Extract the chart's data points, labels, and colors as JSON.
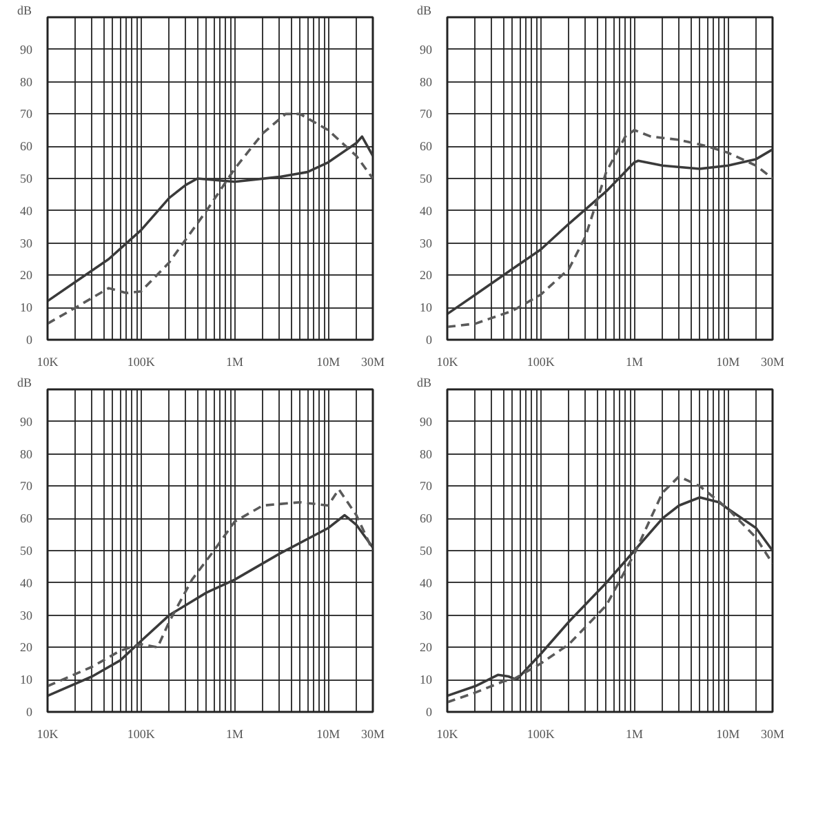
{
  "chart_data": [
    {
      "type": "line",
      "log": "x",
      "grid": true,
      "ylabel": "dB",
      "xlim": [
        10000,
        30000000
      ],
      "ylim": [
        0,
        100
      ],
      "xticks": [
        {
          "value": 10000,
          "label": "10K"
        },
        {
          "value": 20000,
          "label": null
        },
        {
          "value": 30000,
          "label": null
        },
        {
          "value": 40000,
          "label": null
        },
        {
          "value": 50000,
          "label": null
        },
        {
          "value": 60000,
          "label": null
        },
        {
          "value": 70000,
          "label": null
        },
        {
          "value": 80000,
          "label": null
        },
        {
          "value": 90000,
          "label": null
        },
        {
          "value": 100000,
          "label": "100K"
        },
        {
          "value": 200000,
          "label": null
        },
        {
          "value": 300000,
          "label": null
        },
        {
          "value": 400000,
          "label": null
        },
        {
          "value": 500000,
          "label": null
        },
        {
          "value": 600000,
          "label": null
        },
        {
          "value": 700000,
          "label": null
        },
        {
          "value": 800000,
          "label": null
        },
        {
          "value": 900000,
          "label": null
        },
        {
          "value": 1000000,
          "label": "1M"
        },
        {
          "value": 2000000,
          "label": null
        },
        {
          "value": 3000000,
          "label": null
        },
        {
          "value": 4000000,
          "label": null
        },
        {
          "value": 5000000,
          "label": null
        },
        {
          "value": 6000000,
          "label": null
        },
        {
          "value": 7000000,
          "label": null
        },
        {
          "value": 8000000,
          "label": null
        },
        {
          "value": 9000000,
          "label": null
        },
        {
          "value": 10000000,
          "label": "10M"
        },
        {
          "value": 20000000,
          "label": null
        },
        {
          "value": 30000000,
          "label": "30M"
        }
      ],
      "yticks": [
        0,
        10,
        20,
        30,
        40,
        50,
        60,
        70,
        80,
        90
      ],
      "series": [
        {
          "color": "#3a3a3a",
          "line_style": "solid",
          "x": [
            10000,
            20000,
            45000,
            100000,
            200000,
            300000,
            400000,
            1000000,
            3000000,
            6000000,
            10000000,
            20000000,
            23000000,
            30000000
          ],
          "values": [
            12,
            18,
            25,
            34,
            44,
            48,
            50,
            49,
            50.5,
            52,
            55,
            61,
            63,
            57
          ]
        },
        {
          "color": "#5a5a5a",
          "line_style": "dashed",
          "x": [
            10000,
            20000,
            45000,
            70000,
            100000,
            200000,
            500000,
            1000000,
            2000000,
            3500000,
            5000000,
            10000000,
            20000000,
            30000000
          ],
          "values": [
            5,
            10,
            16,
            14.5,
            15,
            24,
            40,
            53,
            64,
            70,
            70,
            65,
            57,
            50
          ]
        }
      ]
    },
    {
      "type": "line",
      "log": "x",
      "grid": true,
      "ylabel": "dB",
      "xlim": [
        10000,
        30000000
      ],
      "ylim": [
        0,
        100
      ],
      "xticks": [
        {
          "value": 10000,
          "label": "10K"
        },
        {
          "value": 20000,
          "label": null
        },
        {
          "value": 30000,
          "label": null
        },
        {
          "value": 40000,
          "label": null
        },
        {
          "value": 50000,
          "label": null
        },
        {
          "value": 60000,
          "label": null
        },
        {
          "value": 70000,
          "label": null
        },
        {
          "value": 80000,
          "label": null
        },
        {
          "value": 90000,
          "label": null
        },
        {
          "value": 100000,
          "label": "100K"
        },
        {
          "value": 200000,
          "label": null
        },
        {
          "value": 300000,
          "label": null
        },
        {
          "value": 400000,
          "label": null
        },
        {
          "value": 500000,
          "label": null
        },
        {
          "value": 600000,
          "label": null
        },
        {
          "value": 700000,
          "label": null
        },
        {
          "value": 800000,
          "label": null
        },
        {
          "value": 900000,
          "label": null
        },
        {
          "value": 1000000,
          "label": "1M"
        },
        {
          "value": 2000000,
          "label": null
        },
        {
          "value": 3000000,
          "label": null
        },
        {
          "value": 4000000,
          "label": null
        },
        {
          "value": 5000000,
          "label": null
        },
        {
          "value": 6000000,
          "label": null
        },
        {
          "value": 7000000,
          "label": null
        },
        {
          "value": 8000000,
          "label": null
        },
        {
          "value": 9000000,
          "label": null
        },
        {
          "value": 10000000,
          "label": "10M"
        },
        {
          "value": 20000000,
          "label": null
        },
        {
          "value": 30000000,
          "label": "30M"
        }
      ],
      "yticks": [
        0,
        10,
        20,
        30,
        40,
        50,
        60,
        70,
        80,
        90
      ],
      "series": [
        {
          "color": "#3a3a3a",
          "line_style": "solid",
          "x": [
            10000,
            20000,
            50000,
            100000,
            200000,
            500000,
            1000000,
            1100000,
            2000000,
            5000000,
            10000000,
            20000000,
            30000000
          ],
          "values": [
            8,
            14,
            22,
            28,
            36,
            46,
            55,
            55.5,
            54,
            53,
            54,
            56,
            59
          ]
        },
        {
          "color": "#5a5a5a",
          "line_style": "dashed",
          "x": [
            10000,
            20000,
            50000,
            100000,
            200000,
            300000,
            500000,
            800000,
            1000000,
            1500000,
            3000000,
            6000000,
            10000000,
            20000000,
            30000000
          ],
          "values": [
            4,
            5,
            9,
            14,
            22,
            32,
            52,
            63,
            65,
            63,
            62,
            60,
            58,
            54,
            50
          ]
        }
      ]
    },
    {
      "type": "line",
      "log": "x",
      "grid": true,
      "ylabel": "dB",
      "xlim": [
        10000,
        30000000
      ],
      "ylim": [
        0,
        100
      ],
      "xticks": [
        {
          "value": 10000,
          "label": "10K"
        },
        {
          "value": 20000,
          "label": null
        },
        {
          "value": 30000,
          "label": null
        },
        {
          "value": 40000,
          "label": null
        },
        {
          "value": 50000,
          "label": null
        },
        {
          "value": 60000,
          "label": null
        },
        {
          "value": 70000,
          "label": null
        },
        {
          "value": 80000,
          "label": null
        },
        {
          "value": 90000,
          "label": null
        },
        {
          "value": 100000,
          "label": "100K"
        },
        {
          "value": 200000,
          "label": null
        },
        {
          "value": 300000,
          "label": null
        },
        {
          "value": 400000,
          "label": null
        },
        {
          "value": 500000,
          "label": null
        },
        {
          "value": 600000,
          "label": null
        },
        {
          "value": 700000,
          "label": null
        },
        {
          "value": 800000,
          "label": null
        },
        {
          "value": 900000,
          "label": null
        },
        {
          "value": 1000000,
          "label": "1M"
        },
        {
          "value": 2000000,
          "label": null
        },
        {
          "value": 3000000,
          "label": null
        },
        {
          "value": 4000000,
          "label": null
        },
        {
          "value": 5000000,
          "label": null
        },
        {
          "value": 6000000,
          "label": null
        },
        {
          "value": 7000000,
          "label": null
        },
        {
          "value": 8000000,
          "label": null
        },
        {
          "value": 9000000,
          "label": null
        },
        {
          "value": 10000000,
          "label": "10M"
        },
        {
          "value": 20000000,
          "label": null
        },
        {
          "value": 30000000,
          "label": "30M"
        }
      ],
      "yticks": [
        0,
        10,
        20,
        30,
        40,
        50,
        60,
        70,
        80,
        90
      ],
      "series": [
        {
          "color": "#3a3a3a",
          "line_style": "solid",
          "x": [
            10000,
            30000,
            60000,
            100000,
            200000,
            500000,
            1000000,
            3000000,
            10000000,
            15000000,
            20000000,
            30000000
          ],
          "values": [
            5,
            11,
            16,
            22,
            30,
            37,
            41,
            49,
            57,
            61,
            58,
            51
          ]
        },
        {
          "color": "#5a5a5a",
          "line_style": "dashed",
          "x": [
            10000,
            30000,
            60000,
            100000,
            150000,
            200000,
            350000,
            600000,
            1000000,
            2000000,
            5000000,
            10000000,
            13000000,
            20000000,
            30000000
          ],
          "values": [
            8,
            14,
            19,
            21,
            20,
            28,
            41,
            50,
            59,
            64,
            65,
            64,
            69,
            61,
            50
          ]
        }
      ]
    },
    {
      "type": "line",
      "log": "x",
      "grid": true,
      "ylabel": "dB",
      "xlim": [
        10000,
        30000000
      ],
      "ylim": [
        0,
        100
      ],
      "xticks": [
        {
          "value": 10000,
          "label": "10K"
        },
        {
          "value": 20000,
          "label": null
        },
        {
          "value": 30000,
          "label": null
        },
        {
          "value": 40000,
          "label": null
        },
        {
          "value": 50000,
          "label": null
        },
        {
          "value": 60000,
          "label": null
        },
        {
          "value": 70000,
          "label": null
        },
        {
          "value": 80000,
          "label": null
        },
        {
          "value": 90000,
          "label": null
        },
        {
          "value": 100000,
          "label": "100K"
        },
        {
          "value": 200000,
          "label": null
        },
        {
          "value": 300000,
          "label": null
        },
        {
          "value": 400000,
          "label": null
        },
        {
          "value": 500000,
          "label": null
        },
        {
          "value": 600000,
          "label": null
        },
        {
          "value": 700000,
          "label": null
        },
        {
          "value": 800000,
          "label": null
        },
        {
          "value": 900000,
          "label": null
        },
        {
          "value": 1000000,
          "label": "1M"
        },
        {
          "value": 2000000,
          "label": null
        },
        {
          "value": 3000000,
          "label": null
        },
        {
          "value": 4000000,
          "label": null
        },
        {
          "value": 5000000,
          "label": null
        },
        {
          "value": 6000000,
          "label": null
        },
        {
          "value": 7000000,
          "label": null
        },
        {
          "value": 8000000,
          "label": null
        },
        {
          "value": 9000000,
          "label": null
        },
        {
          "value": 10000000,
          "label": "10M"
        },
        {
          "value": 20000000,
          "label": null
        },
        {
          "value": 30000000,
          "label": "30M"
        }
      ],
      "yticks": [
        0,
        10,
        20,
        30,
        40,
        50,
        60,
        70,
        80,
        90
      ],
      "series": [
        {
          "color": "#3a3a3a",
          "line_style": "solid",
          "x": [
            10000,
            20000,
            35000,
            45000,
            55000,
            100000,
            200000,
            500000,
            1000000,
            2000000,
            3000000,
            5000000,
            8000000,
            10000000,
            20000000,
            30000000
          ],
          "values": [
            5,
            8,
            11.5,
            11,
            10,
            18,
            28,
            40,
            50,
            60,
            64,
            66.5,
            65,
            63,
            57,
            50
          ]
        },
        {
          "color": "#5a5a5a",
          "line_style": "dashed",
          "x": [
            10000,
            20000,
            40000,
            50000,
            100000,
            200000,
            500000,
            1000000,
            2000000,
            3000000,
            5000000,
            10000000,
            20000000,
            30000000
          ],
          "values": [
            3,
            6,
            9.5,
            10,
            15,
            21,
            33,
            49,
            68,
            73,
            70,
            63,
            54,
            46
          ]
        }
      ]
    }
  ]
}
